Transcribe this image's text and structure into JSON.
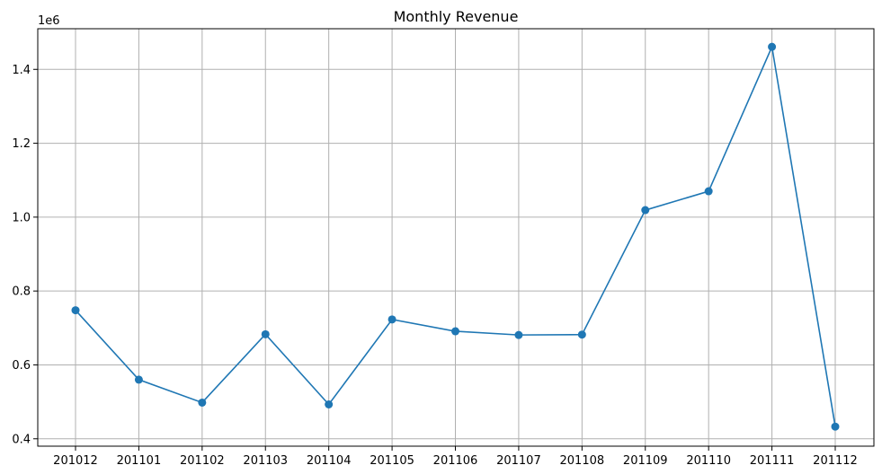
{
  "chart_data": {
    "type": "line",
    "title": "Monthly Revenue",
    "xlabel": "",
    "ylabel": "",
    "y_offset_label": "1e6",
    "categories": [
      "201012",
      "201101",
      "201102",
      "201103",
      "201104",
      "201105",
      "201106",
      "201107",
      "201108",
      "201109",
      "201110",
      "201111",
      "201112"
    ],
    "series": [
      {
        "values": [
          748000,
          560000,
          498000,
          683000,
          493000,
          723000,
          691000,
          681000,
          682000,
          1019000,
          1070000,
          1461000,
          433000
        ]
      }
    ],
    "ylim": [
      0.38,
      1.51
    ],
    "yticks": [
      0.4,
      0.6,
      0.8,
      1.0,
      1.2,
      1.4
    ],
    "ytick_labels": [
      "0.4",
      "0.6",
      "0.8",
      "1.0",
      "1.2",
      "1.4"
    ],
    "grid": true,
    "colors": {
      "line": "#1f77b4",
      "grid": "#b0b0b0",
      "axes": "#000000"
    }
  }
}
